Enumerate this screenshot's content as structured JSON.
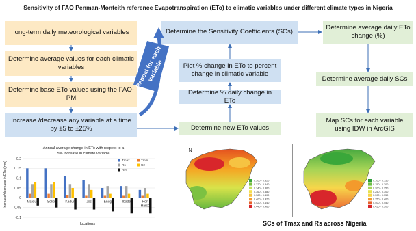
{
  "title": "Sensitivity of FAO Penman-Monteith  reference Evapotranspiration  (ETo) to climatic variables under different climate types in Nigeria",
  "boxes": {
    "b1": "long-term daily meteorological variables",
    "b2": "Determine average values for each climatic variables",
    "b3": "Determine base ETo values using the FAO-PM",
    "b4": "Increase /decrease any variable at a time by ±5 to ±25%",
    "b5": "Determine new ETo values",
    "b6": "Determine % daily change in ETo",
    "b7": "Plot % change in ETo to percent change in climatic variable",
    "b8": "Determine the Sensitivity Coefficients (SCs)",
    "b9": "Determine average daily ETo change (%)",
    "b10": "Determine average daily SCs",
    "b11": "Map SCs for each variable using IDW in ArcGIS"
  },
  "repeat_label": "Repeat for each variable",
  "colors": {
    "peach": "#fde9c4",
    "blue": "#cfe0f2",
    "green": "#e1efd7",
    "arrow": "#3d6fb6",
    "repeat": "#4472c4"
  },
  "chart_data": {
    "type": "bar",
    "title": "Annual average change in ETo with respect to a 5% increase in climate variable",
    "ylabel": "Increase/decrease in ETo (mm)",
    "xlabel": "locations",
    "ylim": [
      -0.1,
      0.2
    ],
    "yticks": [
      "0.2",
      "0.15",
      "0.1",
      "0.05",
      "0",
      "-0.05",
      "-0.1"
    ],
    "categories": [
      "Maiduguri",
      "Sokoto",
      "Kaduna",
      "Jos",
      "Enugu",
      "Ibadan",
      "Port Harcourt"
    ],
    "category_labels": [
      "Maidug",
      "Sokot",
      "Kadun",
      "Jos",
      "Enug",
      "Ibada",
      "Port Harco"
    ],
    "series": [
      {
        "name": "Tmax",
        "color": "#4472c4",
        "values": [
          0.15,
          0.15,
          0.11,
          0.09,
          0.05,
          0.06,
          0.04
        ]
      },
      {
        "name": "Tmin",
        "color": "#ed7d31",
        "values": [
          0.02,
          0.02,
          0.015,
          0.01,
          0.01,
          0.01,
          0.01
        ]
      },
      {
        "name": "Rs",
        "color": "#a5a5a5",
        "values": [
          0.07,
          0.07,
          0.07,
          0.07,
          0.06,
          0.06,
          0.05
        ]
      },
      {
        "name": "U2",
        "color": "#ffc000",
        "values": [
          0.08,
          0.08,
          0.05,
          0.04,
          0.02,
          0.02,
          0.02
        ]
      },
      {
        "name": "RH",
        "color": "#111111",
        "values": [
          -0.04,
          -0.05,
          -0.06,
          -0.06,
          -0.07,
          -0.08,
          -0.08
        ]
      }
    ]
  },
  "maps": {
    "caption": "SCs of Tmax and Rs across Nigeria",
    "left_legend": [
      "0.300 - 0.320",
      "0.320 - 0.340",
      "0.340 - 0.360",
      "0.360 - 0.380",
      "0.380 - 0.400",
      "0.400 - 0.420",
      "0.420 - 0.440",
      "0.440 - 0.460"
    ],
    "right_legend": [
      "0.100 - 0.150",
      "0.150 - 0.200",
      "0.200 - 0.250",
      "0.250 - 0.300",
      "0.300 - 0.350",
      "0.350 - 0.400",
      "0.400 - 0.450",
      "0.450 - 0.500"
    ],
    "north_label": "N"
  }
}
